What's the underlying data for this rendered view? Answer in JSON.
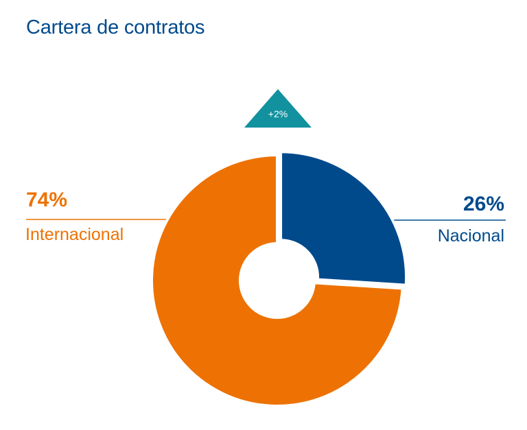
{
  "title": "Cartera de contratos",
  "badge": {
    "text": "+2%",
    "color": "#12919f"
  },
  "chart_data": {
    "type": "pie",
    "variant": "donut",
    "categories": [
      "Internacional",
      "Nacional"
    ],
    "values": [
      74,
      26
    ],
    "value_labels": [
      "74%",
      "26%"
    ],
    "colors": {
      "Internacional": "#ed7203",
      "Nacional": "#004a8c"
    },
    "title": "Cartera de contratos"
  }
}
